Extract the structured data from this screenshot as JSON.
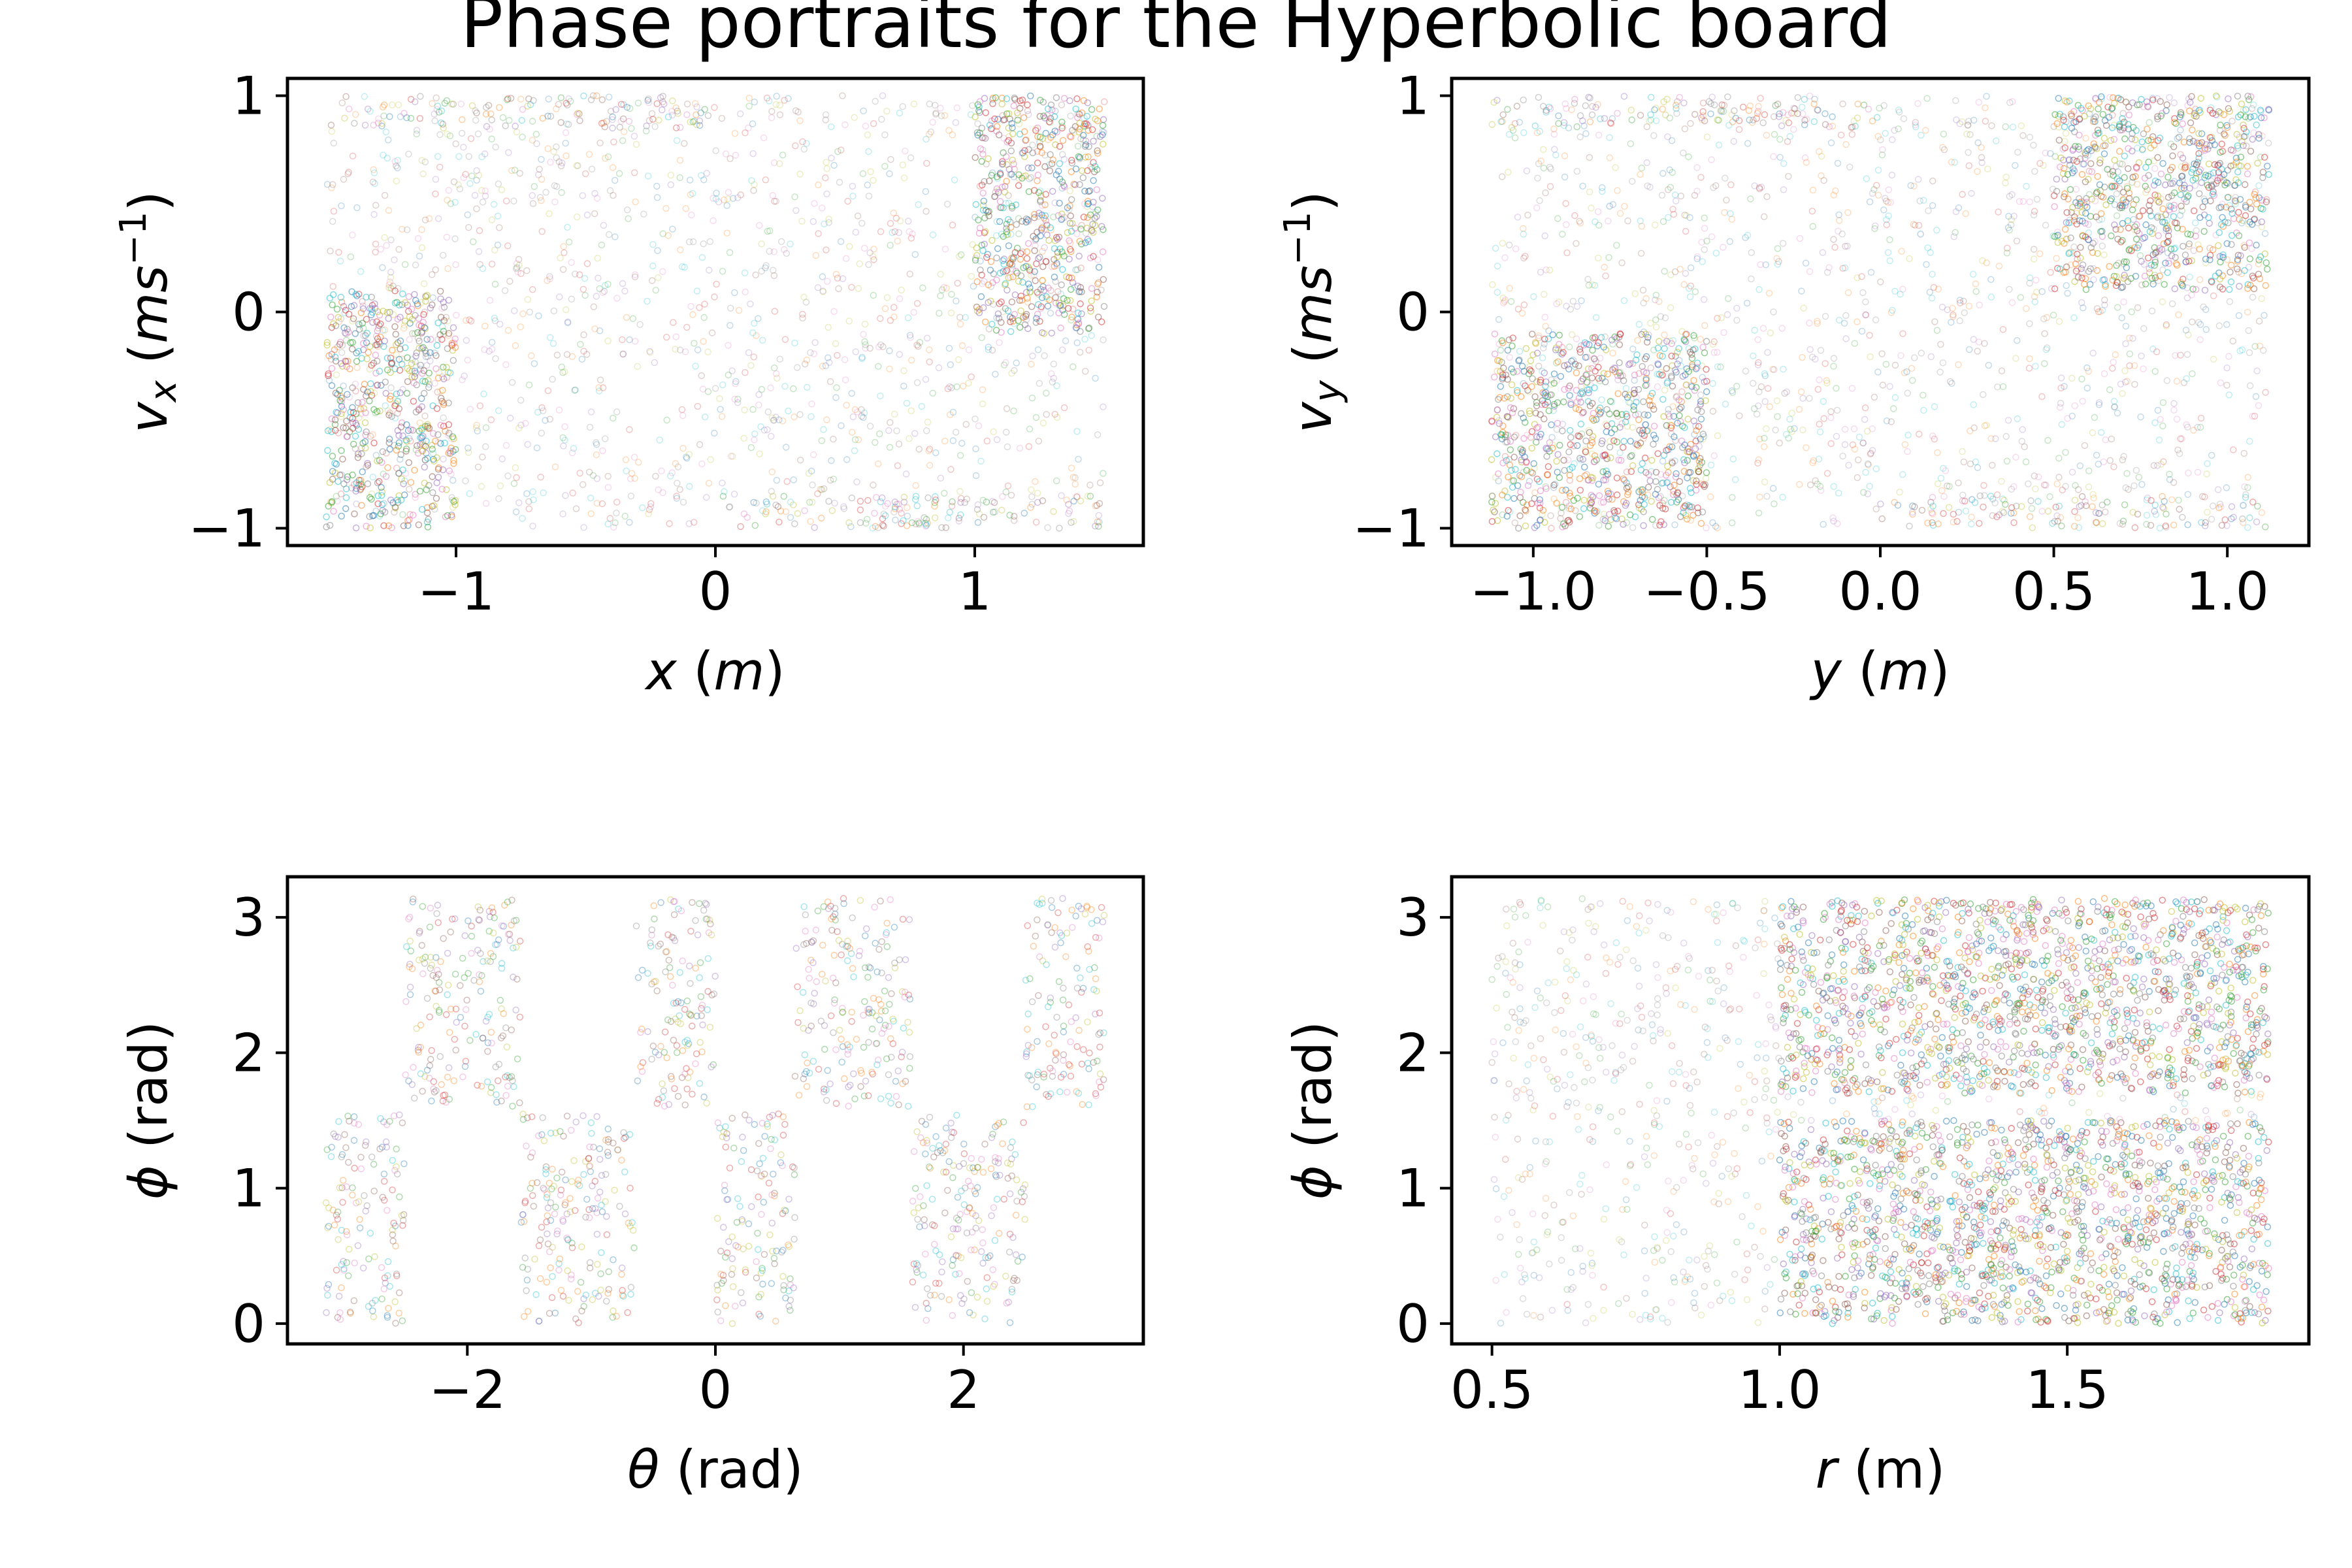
{
  "chart_data": {
    "title": "Phase portraits for the Hyperbolic board",
    "panels": [
      {
        "type": "scatter",
        "xlabel": "x (m)",
        "ylabel": "v_x (ms^-1)",
        "xlim": [
          -1.65,
          1.65
        ],
        "ylim": [
          -1.08,
          1.08
        ],
        "xticks": [
          -1,
          0,
          1
        ],
        "xtick_labels": [
          "−1",
          "0",
          "1"
        ],
        "yticks": [
          -1,
          0,
          1
        ],
        "ytick_labels": [
          "−1",
          "0",
          "1"
        ],
        "regions": [
          {
            "x": [
              -1.5,
              1.5
            ],
            "y": [
              -1.0,
              1.0
            ],
            "density": "light"
          },
          {
            "x": [
              -1.5,
              -1.0
            ],
            "y": [
              -1.0,
              0.1
            ],
            "density": "dense"
          },
          {
            "x": [
              1.0,
              1.5
            ],
            "y": [
              -0.1,
              1.0
            ],
            "density": "dense"
          },
          {
            "x": [
              -1.5,
              0.0
            ],
            "y": [
              0.85,
              1.0
            ],
            "density": "medium"
          },
          {
            "x": [
              0.0,
              1.5
            ],
            "y": [
              -1.0,
              -0.85
            ],
            "density": "medium"
          }
        ]
      },
      {
        "type": "scatter",
        "xlabel": "y (m)",
        "ylabel": "v_y (ms^-1)",
        "xlim": [
          -1.235,
          1.235
        ],
        "ylim": [
          -1.08,
          1.08
        ],
        "xticks": [
          -1.0,
          -0.5,
          0.0,
          0.5,
          1.0
        ],
        "xtick_labels": [
          "−1.0",
          "−0.5",
          "0.0",
          "0.5",
          "1.0"
        ],
        "yticks": [
          -1,
          0,
          1
        ],
        "ytick_labels": [
          "−1",
          "0",
          "1"
        ],
        "regions": [
          {
            "x": [
              -1.12,
              1.12
            ],
            "y": [
              -1.0,
              1.0
            ],
            "density": "light"
          },
          {
            "x": [
              -1.12,
              -0.5
            ],
            "y": [
              -1.0,
              -0.1
            ],
            "density": "dense"
          },
          {
            "x": [
              0.5,
              1.12
            ],
            "y": [
              0.1,
              1.0
            ],
            "density": "dense"
          },
          {
            "x": [
              -1.12,
              0.0
            ],
            "y": [
              0.85,
              1.0
            ],
            "density": "medium"
          },
          {
            "x": [
              0.0,
              1.12
            ],
            "y": [
              -1.0,
              -0.85
            ],
            "density": "medium"
          }
        ]
      },
      {
        "type": "scatter",
        "xlabel": "θ (rad)",
        "ylabel": "ϕ (rad)",
        "xlim": [
          -3.45,
          3.45
        ],
        "ylim": [
          -0.15,
          3.3
        ],
        "xticks": [
          -2,
          0,
          2
        ],
        "xtick_labels": [
          "−2",
          "0",
          "2"
        ],
        "yticks": [
          0,
          1,
          2,
          3
        ],
        "ytick_labels": [
          "0",
          "1",
          "2",
          "3"
        ],
        "regions": [
          {
            "x": [
              -3.14,
              -2.5
            ],
            "y": [
              0.0,
              1.55
            ],
            "density": "medium"
          },
          {
            "x": [
              -1.57,
              -0.64
            ],
            "y": [
              0.0,
              1.55
            ],
            "density": "medium"
          },
          {
            "x": [
              0.0,
              0.64
            ],
            "y": [
              0.0,
              1.55
            ],
            "density": "medium"
          },
          {
            "x": [
              1.57,
              2.5
            ],
            "y": [
              0.0,
              1.55
            ],
            "density": "medium"
          },
          {
            "x": [
              -2.5,
              -1.57
            ],
            "y": [
              1.6,
              3.14
            ],
            "density": "medium"
          },
          {
            "x": [
              -0.64,
              0.0
            ],
            "y": [
              1.6,
              3.14
            ],
            "density": "medium"
          },
          {
            "x": [
              0.64,
              1.57
            ],
            "y": [
              1.6,
              3.14
            ],
            "density": "medium"
          },
          {
            "x": [
              2.5,
              3.14
            ],
            "y": [
              1.6,
              3.14
            ],
            "density": "medium"
          }
        ]
      },
      {
        "type": "scatter",
        "xlabel": "r (m)",
        "ylabel": "ϕ (rad)",
        "xlim": [
          0.43,
          1.92
        ],
        "ylim": [
          -0.15,
          3.3
        ],
        "xticks": [
          0.5,
          1.0,
          1.5
        ],
        "xtick_labels": [
          "0.5",
          "1.0",
          "1.5"
        ],
        "yticks": [
          0,
          1,
          2,
          3
        ],
        "ytick_labels": [
          "0",
          "1",
          "2",
          "3"
        ],
        "regions": [
          {
            "x": [
              0.5,
              1.0
            ],
            "y": [
              0.0,
              3.14
            ],
            "density": "light"
          },
          {
            "x": [
              1.0,
              1.85
            ],
            "y": [
              0.0,
              1.5
            ],
            "density": "dense"
          },
          {
            "x": [
              1.0,
              1.85
            ],
            "y": [
              1.7,
              3.14
            ],
            "density": "dense"
          },
          {
            "x": [
              1.0,
              1.85
            ],
            "y": [
              1.5,
              1.7
            ],
            "density": "light"
          }
        ]
      }
    ],
    "point_colors": [
      "#1f77b4",
      "#ff7f0e",
      "#2ca02c",
      "#d62728",
      "#9467bd",
      "#8c564b",
      "#e377c2",
      "#7f7f7f",
      "#bcbd22",
      "#17becf"
    ]
  }
}
